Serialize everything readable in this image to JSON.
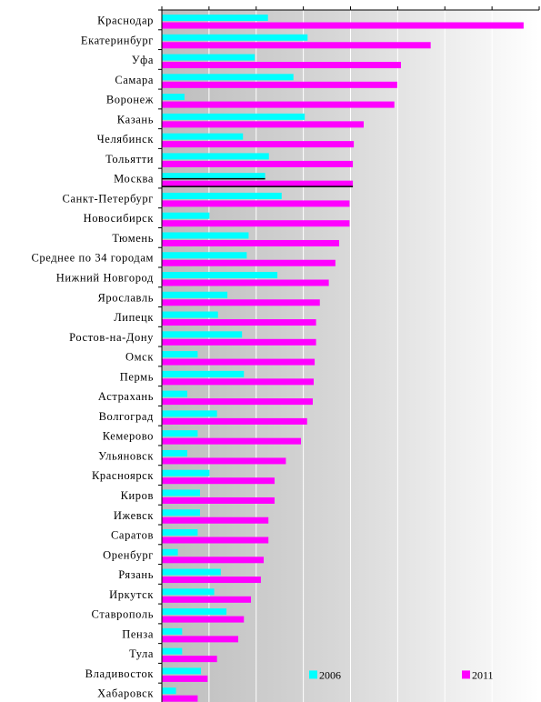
{
  "chart_data": {
    "type": "bar",
    "orientation": "horizontal",
    "categories": [
      "Краснодар",
      "Екатеринбург",
      "Уфа",
      "Самара",
      "Воронеж",
      "Казань",
      "Челябинск",
      "Тольятти",
      "Москва",
      "Санкт-Петербург",
      "Новосибирск",
      "Тюмень",
      "Среднее по 34 городам",
      "Нижний Новгород",
      "Ярославль",
      "Липецк",
      "Ростов-на-Дону",
      "Омск",
      "Пермь",
      "Астрахань",
      "Волгоград",
      "Кемерово",
      "Ульяновск",
      "Красноярск",
      "Киров",
      "Ижевск",
      "Саратов",
      "Оренбург",
      "Рязань",
      "Иркутск",
      "Ставрополь",
      "Пенза",
      "Тула",
      "Владивосток",
      "Хабаровск"
    ],
    "series": [
      {
        "name": "2006",
        "color": "#00ffff",
        "values": [
          22.4,
          30.8,
          19.6,
          27.8,
          4.7,
          30.2,
          17.1,
          22.6,
          21.8,
          25.3,
          10.0,
          18.3,
          17.9,
          24.4,
          13.8,
          11.8,
          16.9,
          7.5,
          17.3,
          5.3,
          11.6,
          7.5,
          5.3,
          10.0,
          8.0,
          8.0,
          7.5,
          3.3,
          12.4,
          11.0,
          13.6,
          4.2,
          4.2,
          8.2,
          2.9
        ]
      },
      {
        "name": "2011",
        "color": "#ff00ff",
        "values": [
          76.6,
          56.9,
          50.6,
          49.8,
          49.2,
          42.7,
          40.6,
          40.4,
          40.4,
          39.7,
          39.7,
          37.5,
          36.7,
          35.3,
          33.4,
          32.6,
          32.6,
          32.3,
          32.1,
          31.9,
          30.7,
          29.4,
          26.2,
          23.8,
          23.8,
          22.5,
          22.5,
          21.5,
          20.9,
          18.8,
          17.3,
          16.1,
          11.6,
          9.6,
          7.5
        ]
      }
    ],
    "xlim": [
      0,
      80
    ],
    "x_gridlines": [
      10,
      20,
      30,
      40,
      50,
      60,
      70
    ],
    "x_tick_labels": "none",
    "grid": true,
    "legend_position": "bottom-right",
    "background": "gradient-grey-to-white"
  }
}
